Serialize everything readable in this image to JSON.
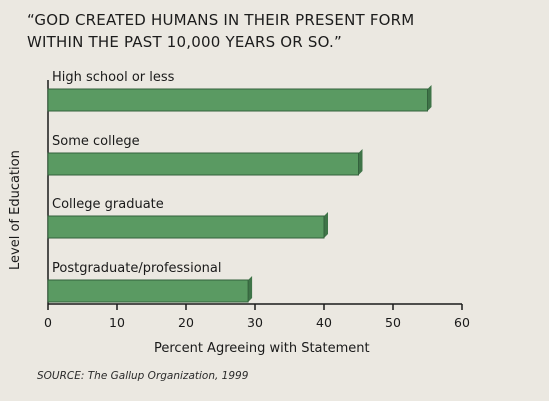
{
  "chart_data": {
    "type": "bar",
    "orientation": "horizontal",
    "title_lines": [
      "“GOD CREATED HUMANS IN THEIR PRESENT FORM",
      "WITHIN THE PAST 10,000 YEARS OR SO.”"
    ],
    "categories": [
      "High school or less",
      "Some college",
      "College graduate",
      "Postgraduate/professional"
    ],
    "values": [
      55,
      45,
      40,
      29
    ],
    "xlabel": "Percent Agreeing with Statement",
    "ylabel": "Level of Education",
    "xlim": [
      0,
      60
    ],
    "xticks": [
      "0",
      "10",
      "20",
      "30",
      "40",
      "50",
      "60"
    ],
    "grid": false,
    "bar_color": "#5a9a62",
    "bar_edge_color": "#33613c",
    "source": "SOURCE: The Gallup Organization, 1999"
  }
}
